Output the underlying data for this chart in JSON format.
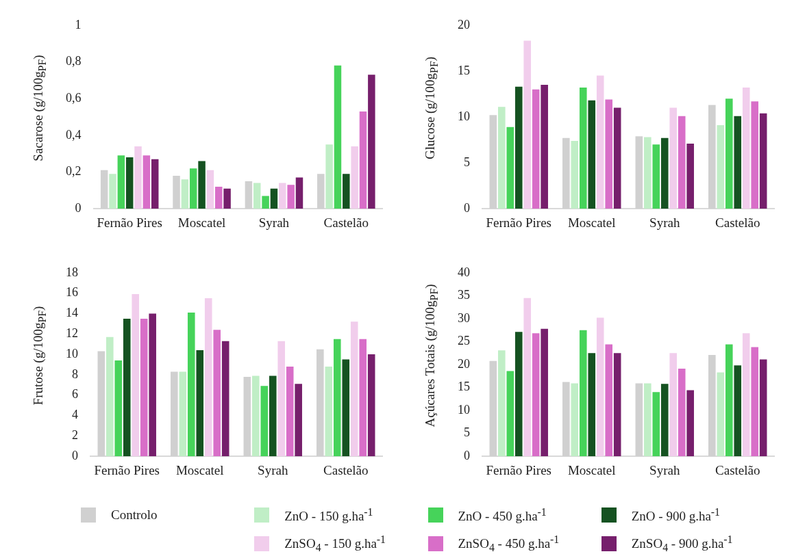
{
  "chart_data": [
    {
      "type": "bar",
      "ylabel": "Sacarose (g/100g$_{PF}$)",
      "categories": [
        "Fernão Pires",
        "Moscatel",
        "Syrah",
        "Castelão"
      ],
      "ylim": [
        0,
        1
      ],
      "yticks": [
        0,
        {
          "value": 0.2,
          "label": "0,2"
        },
        {
          "value": 0.4,
          "label": "0,4"
        },
        {
          "value": 0.6,
          "label": "0,6"
        },
        {
          "value": 0.8,
          "label": "0,8"
        },
        1
      ],
      "legend": "bottom",
      "series": [
        {
          "name": "Controlo",
          "color": "#d0d0d0",
          "values": [
            0.21,
            0.18,
            0.15,
            0.19
          ]
        },
        {
          "name": "ZnO - 150 g.ha$^{-1}$",
          "color": "#c0eec6",
          "values": [
            0.19,
            0.16,
            0.14,
            0.35
          ]
        },
        {
          "name": "ZnO - 450 g.ha$^{-1}$",
          "color": "#46d35a",
          "values": [
            0.29,
            0.22,
            0.07,
            0.78
          ]
        },
        {
          "name": "ZnO - 900 g.ha$^{-1}$",
          "color": "#155221",
          "values": [
            0.28,
            0.26,
            0.11,
            0.19
          ]
        },
        {
          "name": "ZnSO$_{4}$ - 150 g.ha$^{-1}$",
          "color": "#f1cdec",
          "values": [
            0.34,
            0.21,
            0.14,
            0.34
          ]
        },
        {
          "name": "ZnSO$_{4}$ - 450 g.ha$^{-1}$",
          "color": "#d86ec8",
          "values": [
            0.29,
            0.12,
            0.13,
            0.53
          ]
        },
        {
          "name": "ZnSO$_{4}$ - 900 g.ha$^{-1}$",
          "color": "#761f6c",
          "values": [
            0.27,
            0.11,
            0.17,
            0.73
          ]
        }
      ]
    },
    {
      "type": "bar",
      "ylabel": "Glucose (g/100g$_{PF}$)",
      "categories": [
        "Fernão Pires",
        "Moscatel",
        "Syrah",
        "Castelão"
      ],
      "ylim": [
        0,
        20
      ],
      "yticks": [
        0,
        5,
        10,
        15,
        20
      ],
      "series": [
        {
          "color": "#d0d0d0",
          "values": [
            10.2,
            7.7,
            7.9,
            11.3
          ]
        },
        {
          "color": "#c0eec6",
          "values": [
            11.1,
            7.4,
            7.8,
            9.1
          ]
        },
        {
          "color": "#46d35a",
          "values": [
            8.9,
            13.2,
            7.0,
            12.0
          ]
        },
        {
          "color": "#155221",
          "values": [
            13.3,
            11.8,
            7.7,
            10.1
          ]
        },
        {
          "color": "#f1cdec",
          "values": [
            18.3,
            14.5,
            11.0,
            13.2
          ]
        },
        {
          "color": "#d86ec8",
          "values": [
            13.0,
            11.9,
            10.1,
            11.7
          ]
        },
        {
          "color": "#761f6c",
          "values": [
            13.5,
            11.0,
            7.1,
            10.4
          ]
        }
      ]
    },
    {
      "type": "bar",
      "ylabel": "Frutose (g/100g$_{PF}$)",
      "categories": [
        "Fernão Pires",
        "Moscatel",
        "Syrah",
        "Castelão"
      ],
      "ylim": [
        0,
        18
      ],
      "yticks": [
        0,
        2,
        4,
        6,
        8,
        10,
        12,
        14,
        16,
        18
      ],
      "series": [
        {
          "color": "#d0d0d0",
          "values": [
            10.3,
            8.3,
            7.8,
            10.5
          ]
        },
        {
          "color": "#c0eec6",
          "values": [
            11.7,
            8.3,
            7.9,
            8.8
          ]
        },
        {
          "color": "#46d35a",
          "values": [
            9.4,
            14.1,
            6.9,
            11.5
          ]
        },
        {
          "color": "#155221",
          "values": [
            13.5,
            10.4,
            7.9,
            9.5
          ]
        },
        {
          "color": "#f1cdec",
          "values": [
            15.9,
            15.5,
            11.3,
            13.2
          ]
        },
        {
          "color": "#d86ec8",
          "values": [
            13.5,
            12.4,
            8.8,
            11.5
          ]
        },
        {
          "color": "#761f6c",
          "values": [
            14.0,
            11.3,
            7.1,
            10.0
          ]
        }
      ]
    },
    {
      "type": "bar",
      "ylabel": "Açúcares Totais (g/100g$_{PF}$)",
      "categories": [
        "Fernão Pires",
        "Moscatel",
        "Syrah",
        "Castelão"
      ],
      "ylim": [
        0,
        40
      ],
      "yticks": [
        0,
        5,
        10,
        15,
        20,
        25,
        30,
        35,
        40
      ],
      "series": [
        {
          "color": "#d0d0d0",
          "values": [
            20.8,
            16.2,
            15.9,
            22.1
          ]
        },
        {
          "color": "#c0eec6",
          "values": [
            23.1,
            15.9,
            15.9,
            18.3
          ]
        },
        {
          "color": "#46d35a",
          "values": [
            18.6,
            27.5,
            14.0,
            24.4
          ]
        },
        {
          "color": "#155221",
          "values": [
            27.1,
            22.5,
            15.8,
            19.8
          ]
        },
        {
          "color": "#f1cdec",
          "values": [
            34.5,
            30.2,
            22.5,
            26.8
          ]
        },
        {
          "color": "#d86ec8",
          "values": [
            26.8,
            24.4,
            19.1,
            23.8
          ]
        },
        {
          "color": "#761f6c",
          "values": [
            27.8,
            22.5,
            14.4,
            21.1
          ]
        }
      ]
    }
  ]
}
